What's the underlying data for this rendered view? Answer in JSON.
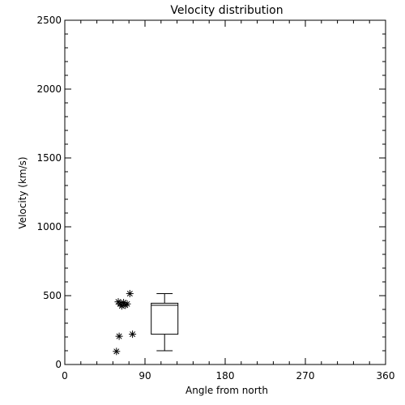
{
  "chart_data": {
    "type": "scatter",
    "title": "Velocity distribution",
    "xlabel": "Angle from north",
    "ylabel": "Velocity (km/s)",
    "xlim": [
      0,
      360
    ],
    "ylim": [
      0,
      2500
    ],
    "xticks": [
      0,
      90,
      180,
      270,
      360
    ],
    "yticks": [
      0,
      500,
      1000,
      1500,
      2000,
      2500
    ],
    "grid": false,
    "marker": "asterisk",
    "points": [
      {
        "x": 60,
        "y": 455
      },
      {
        "x": 62,
        "y": 440
      },
      {
        "x": 64,
        "y": 425
      },
      {
        "x": 66,
        "y": 450
      },
      {
        "x": 68,
        "y": 430
      },
      {
        "x": 70,
        "y": 440
      },
      {
        "x": 73,
        "y": 515
      },
      {
        "x": 76,
        "y": 220
      },
      {
        "x": 61,
        "y": 205
      },
      {
        "x": 58,
        "y": 95
      }
    ],
    "boxplot": {
      "x_center": 112,
      "x_width": 30,
      "whisker_low": 100,
      "q1": 220,
      "median": 430,
      "q3": 445,
      "whisker_high": 515
    },
    "colors": {
      "background": "#ffffff",
      "foreground": "#000000"
    }
  }
}
